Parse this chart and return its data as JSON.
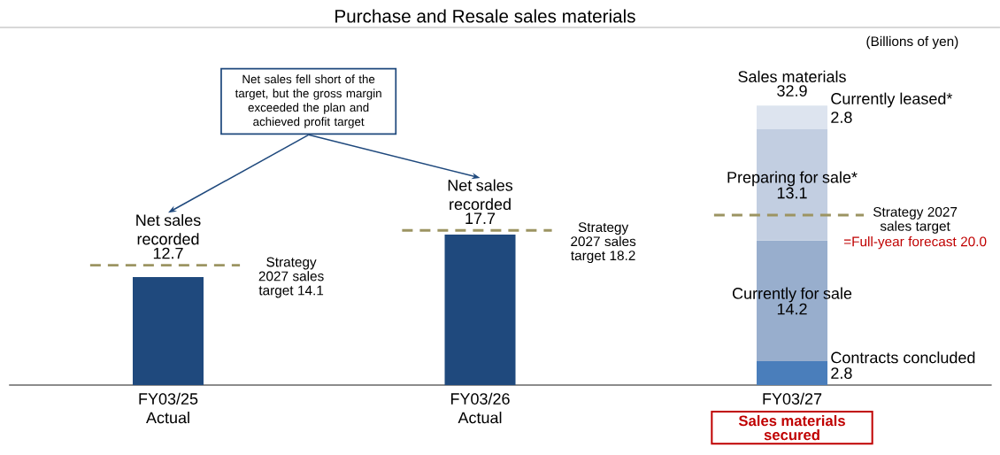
{
  "chart_data": {
    "type": "bar",
    "title": "Purchase and Resale sales materials",
    "subtitle": "(Billions of yen)",
    "categories": [
      "FY03/25 Actual",
      "FY03/26 Actual",
      "FY03/27"
    ],
    "stacked": true,
    "data_labels": true,
    "series": [
      {
        "name": "Net sales recorded",
        "color": "#1f497d",
        "values": [
          12.7,
          17.7,
          null
        ]
      },
      {
        "name": "Contracts concluded",
        "color": "#4a7ebb",
        "values": [
          null,
          null,
          2.8
        ]
      },
      {
        "name": "Currently for sale",
        "color": "#98aecd",
        "values": [
          null,
          null,
          14.2
        ]
      },
      {
        "name": "Preparing for sale*",
        "color": "#c2cee1",
        "values": [
          null,
          null,
          13.1
        ]
      },
      {
        "name": "Currently leased*",
        "color": "#dde4ef",
        "values": [
          null,
          null,
          2.8
        ]
      }
    ],
    "totals": [
      null,
      null,
      "32.9"
    ],
    "ref_lines": [
      {
        "axis": "y",
        "value": 14.1,
        "label": "Strategy 2027 sales target 14.1",
        "color": "#9c9462",
        "line_style": "dashed"
      },
      {
        "axis": "y",
        "value": 18.2,
        "label": "Strategy 2027 sales target 18.2",
        "color": "#9c9462",
        "line_style": "dashed"
      },
      {
        "axis": "y",
        "value": 20.0,
        "label": "Strategy 2027 sales target",
        "color": "#9c9462",
        "line_style": "dashed"
      }
    ],
    "annotations": [
      "Net sales fell short of the target, but the gross margin exceeded the plan and achieved profit target",
      "Sales materials secured",
      "Sales materials",
      "=Full-year forecast 20.0"
    ]
  }
}
